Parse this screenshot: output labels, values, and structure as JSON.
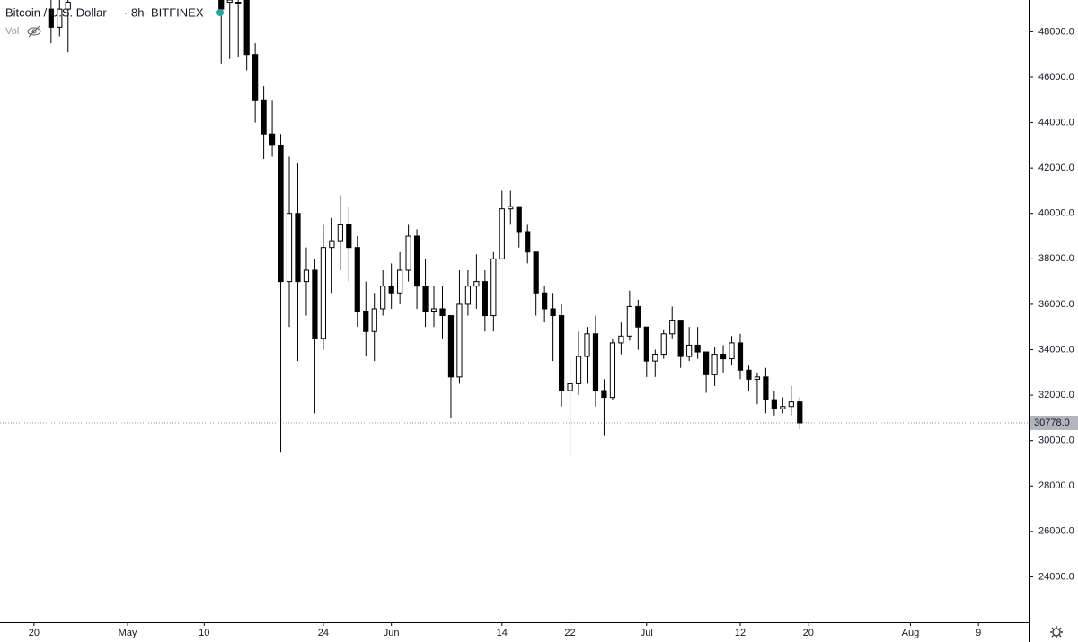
{
  "chart_data": {
    "type": "candlestick",
    "symbol": "Bitcoin / U.S. Dollar",
    "interval": "8h",
    "exchange": "BITFINEX",
    "volume_label": "Vol",
    "x": [
      "Apr 22",
      "Apr 23",
      "Apr 24",
      "May 12",
      "May 13",
      "May 14",
      "May 15",
      "May 16",
      "May 17",
      "May 18",
      "May 19",
      "May 20",
      "May 21",
      "May 22",
      "May 23",
      "May 24",
      "May 25",
      "May 26",
      "May 27",
      "May 28",
      "May 29",
      "May 30",
      "May 31",
      "Jun 1",
      "Jun 2",
      "Jun 3",
      "Jun 4",
      "Jun 5",
      "Jun 6",
      "Jun 7",
      "Jun 8",
      "Jun 9",
      "Jun 10",
      "Jun 11",
      "Jun 12",
      "Jun 13",
      "Jun 14",
      "Jun 15",
      "Jun 16",
      "Jun 17",
      "Jun 18",
      "Jun 19",
      "Jun 20",
      "Jun 21",
      "Jun 22",
      "Jun 23",
      "Jun 24",
      "Jun 25",
      "Jun 26",
      "Jun 27",
      "Jun 28",
      "Jun 29",
      "Jun 30",
      "Jul 1",
      "Jul 2",
      "Jul 3",
      "Jul 4",
      "Jul 5",
      "Jul 6",
      "Jul 7",
      "Jul 8",
      "Jul 9",
      "Jul 10",
      "Jul 11",
      "Jul 12",
      "Jul 13",
      "Jul 14",
      "Jul 15",
      "Jul 16",
      "Jul 17",
      "Jul 18",
      "Jul 19"
    ],
    "open": [
      49000,
      48200,
      49000,
      49400,
      49300,
      49300,
      49400,
      47000,
      45000,
      43500,
      43000,
      37000,
      40000,
      37000,
      37500,
      34500,
      38500,
      38800,
      39500,
      38500,
      35700,
      34800,
      35800,
      36800,
      36500,
      37500,
      39000,
      36800,
      35700,
      35800,
      35500,
      32800,
      36000,
      36800,
      37000,
      35500,
      38000,
      40200,
      40300,
      39200,
      38300,
      36500,
      35800,
      35500,
      32200,
      32500,
      33700,
      34700,
      32200,
      31900,
      34300,
      34600,
      35900,
      35000,
      33500,
      33800,
      34700,
      35300,
      33700,
      34200,
      33900,
      32900,
      33800,
      33600,
      34300,
      33100,
      32700,
      32800,
      31800,
      31400,
      31500,
      31700
    ],
    "high": [
      49400,
      49400,
      49400,
      49400,
      49400,
      49400,
      49400,
      47500,
      45600,
      45000,
      43500,
      42500,
      42200,
      38500,
      38000,
      39500,
      39800,
      40800,
      40300,
      39000,
      37000,
      36500,
      37500,
      37800,
      38300,
      39500,
      39300,
      38000,
      36800,
      36800,
      35500,
      37500,
      37500,
      38200,
      37500,
      38300,
      41000,
      41000,
      40300,
      39500,
      38300,
      36800,
      36500,
      36000,
      33500,
      34800,
      35000,
      35500,
      32700,
      34500,
      35200,
      36600,
      36200,
      35000,
      34000,
      34900,
      35900,
      35300,
      35000,
      35000,
      33900,
      34100,
      34200,
      34600,
      34700,
      33300,
      33000,
      33200,
      32200,
      31900,
      32400,
      31900
    ],
    "low": [
      47500,
      47800,
      47100,
      46600,
      46800,
      46900,
      46300,
      44000,
      42400,
      42500,
      29500,
      35000,
      33500,
      35500,
      31200,
      34000,
      36500,
      37500,
      37000,
      35000,
      33700,
      33500,
      35500,
      35800,
      36000,
      37000,
      35800,
      35000,
      35000,
      34500,
      31000,
      32500,
      35500,
      35800,
      34800,
      34800,
      38000,
      39500,
      38500,
      37800,
      35500,
      35200,
      33500,
      31500,
      29300,
      32000,
      32500,
      31500,
      30200,
      31800,
      33800,
      34400,
      34000,
      32800,
      32800,
      33600,
      34500,
      33200,
      33500,
      33600,
      32100,
      32400,
      33000,
      33300,
      32700,
      32200,
      31600,
      31200,
      31100,
      31200,
      31100,
      30500
    ],
    "close": [
      48200,
      49000,
      49300,
      49000,
      49400,
      49300,
      47000,
      45000,
      43500,
      43000,
      37000,
      40000,
      37000,
      37500,
      34500,
      38500,
      38800,
      39500,
      38500,
      35700,
      34800,
      35800,
      36800,
      36500,
      37500,
      39000,
      36800,
      35700,
      35800,
      35500,
      32800,
      36000,
      36800,
      37000,
      35500,
      38000,
      40200,
      40300,
      39200,
      38300,
      36500,
      35800,
      35500,
      32200,
      32500,
      33700,
      34700,
      32200,
      31900,
      34300,
      34600,
      35900,
      35000,
      33500,
      33800,
      34700,
      35300,
      33700,
      34200,
      33900,
      32900,
      33800,
      33600,
      34300,
      33100,
      32700,
      32800,
      31800,
      31400,
      31500,
      31700,
      30778
    ],
    "up_color": "#ffffff",
    "down_color": "#000000",
    "xlim": [
      "Apr 16",
      "Aug 15"
    ],
    "xticks": [
      {
        "value": "Apr 20",
        "label": "20"
      },
      {
        "value": "May 1",
        "label": "May"
      },
      {
        "value": "May 10",
        "label": "10"
      },
      {
        "value": "May 24",
        "label": "24"
      },
      {
        "value": "Jun 1",
        "label": "Jun"
      },
      {
        "value": "Jun 14",
        "label": "14"
      },
      {
        "value": "Jun 22",
        "label": "22"
      },
      {
        "value": "Jul 1",
        "label": "Jul"
      },
      {
        "value": "Jul 12",
        "label": "12"
      },
      {
        "value": "Jul 20",
        "label": "20"
      },
      {
        "value": "Aug 1",
        "label": "Aug"
      },
      {
        "value": "Aug 9",
        "label": "9"
      }
    ],
    "ylim": [
      22000,
      49400
    ],
    "yticks": [
      {
        "value": 24000,
        "label": "24000.0"
      },
      {
        "value": 26000,
        "label": "26000.0"
      },
      {
        "value": 28000,
        "label": "28000.0"
      },
      {
        "value": 30000,
        "label": "30000.0"
      },
      {
        "value": 32000,
        "label": "32000.0"
      },
      {
        "value": 34000,
        "label": "34000.0"
      },
      {
        "value": 36000,
        "label": "36000.0"
      },
      {
        "value": 38000,
        "label": "38000.0"
      },
      {
        "value": 40000,
        "label": "40000.0"
      },
      {
        "value": 42000,
        "label": "42000.0"
      },
      {
        "value": 44000,
        "label": "44000.0"
      },
      {
        "value": 46000,
        "label": "46000.0"
      },
      {
        "value": 48000,
        "label": "48000.0"
      }
    ],
    "last_price": {
      "value": 30778,
      "label": "30778.0"
    }
  }
}
